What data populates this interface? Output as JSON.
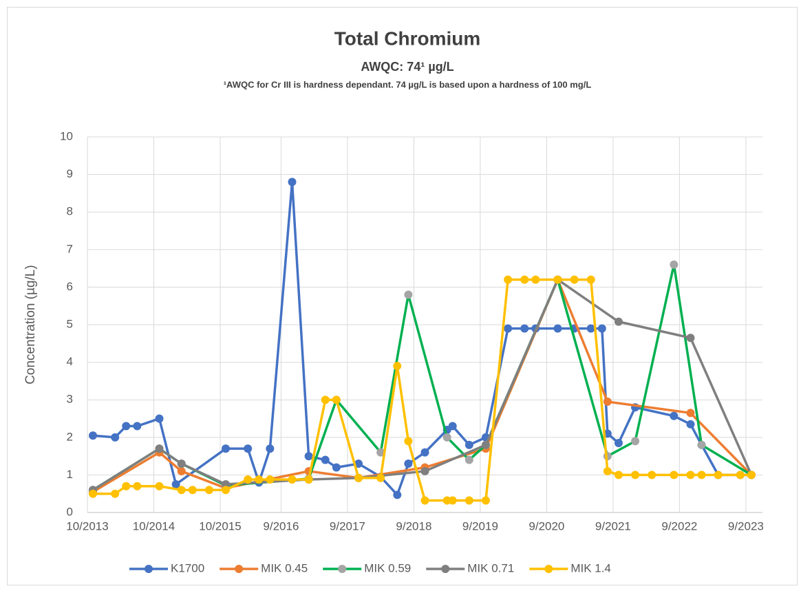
{
  "chart_data": {
    "type": "line",
    "title": "Total Chromium",
    "subtitle": "AWQC: 74¹ µg/L",
    "note": "¹AWQC for Cr III is hardness dependant. 74 µg/L is based upon a hardness of 100 mg/L",
    "y_label": "Concentration (µg/L)",
    "xlim": [
      "10/2013",
      "12/2023"
    ],
    "xticks": [
      "10/2013",
      "10/2014",
      "10/2015",
      "9/2016",
      "9/2017",
      "9/2018",
      "9/2019",
      "9/2020",
      "9/2021",
      "9/2022",
      "9/2023"
    ],
    "ylim": [
      0,
      10
    ],
    "yticks": [
      0,
      1,
      2,
      3,
      4,
      5,
      6,
      7,
      8,
      9,
      10
    ],
    "grid": true,
    "legend": "bottom",
    "series": [
      {
        "name": "K1700",
        "color": "#4472c4",
        "marker_color": "#4472c4",
        "x": [
          "11/2013",
          "3/2014",
          "5/2014",
          "7/2014",
          "11/2014",
          "2/2015",
          "11/2015",
          "3/2016",
          "5/2016",
          "7/2016",
          "11/2016",
          "2/2017",
          "5/2017",
          "7/2017",
          "11/2017",
          "3/2018",
          "6/2018",
          "8/2018",
          "11/2018",
          "3/2019",
          "4/2019",
          "7/2019",
          "10/2019",
          "2/2020",
          "5/2020",
          "7/2020",
          "11/2020",
          "2/2021",
          "5/2021",
          "7/2021",
          "8/2021",
          "10/2021",
          "1/2022",
          "8/2022",
          "11/2022",
          "1/2023",
          "4/2023",
          "8/2023",
          "10/2023"
        ],
        "values": [
          2.05,
          2.0,
          2.3,
          2.3,
          2.5,
          0.75,
          1.7,
          1.7,
          0.8,
          1.7,
          8.8,
          1.5,
          1.4,
          1.2,
          1.3,
          0.95,
          0.47,
          1.3,
          1.6,
          2.2,
          2.3,
          1.8,
          2.0,
          4.9,
          4.9,
          4.9,
          4.9,
          4.9,
          4.9,
          4.9,
          2.1,
          1.85,
          2.8,
          2.57,
          2.35,
          1.8,
          1.0,
          1.0,
          1.0
        ]
      },
      {
        "name": "MIK 0.45",
        "color": "#ed7d31",
        "marker_color": "#ed7d31",
        "x": [
          "11/2013",
          "11/2014",
          "3/2015",
          "11/2015",
          "2/2017",
          "11/2017",
          "11/2018",
          "10/2019",
          "11/2020",
          "8/2021",
          "11/2022",
          "10/2023"
        ],
        "values": [
          0.55,
          1.6,
          1.1,
          0.65,
          1.1,
          0.92,
          1.2,
          1.7,
          6.2,
          2.95,
          2.65,
          1.0
        ]
      },
      {
        "name": "MIK 0.59",
        "color": "#00b050",
        "marker_color": "#a5a5a5",
        "x": [
          "11/2013",
          "11/2014",
          "3/2015",
          "11/2015",
          "2/2017",
          "7/2017",
          "3/2018",
          "8/2018",
          "3/2019",
          "7/2019",
          "10/2019",
          "11/2020",
          "8/2021",
          "1/2022",
          "8/2022",
          "1/2023",
          "10/2023"
        ],
        "values": [
          0.6,
          1.7,
          1.3,
          0.72,
          0.9,
          3.0,
          1.6,
          5.8,
          2.0,
          1.4,
          1.8,
          6.2,
          1.5,
          1.9,
          6.6,
          1.8,
          1.0
        ]
      },
      {
        "name": "MIK 0.71",
        "color": "#7f7f7f",
        "marker_color": "#7f7f7f",
        "x": [
          "11/2013",
          "11/2014",
          "3/2015",
          "11/2015",
          "2/2017",
          "11/2017",
          "11/2018",
          "10/2019",
          "11/2020",
          "10/2021",
          "11/2022",
          "10/2023"
        ],
        "values": [
          0.6,
          1.7,
          1.3,
          0.75,
          0.88,
          0.92,
          1.1,
          1.8,
          6.2,
          5.08,
          4.65,
          1.0
        ]
      },
      {
        "name": "MIK 1.4",
        "color": "#ffc000",
        "marker_color": "#ffc000",
        "x": [
          "11/2013",
          "3/2014",
          "5/2014",
          "7/2014",
          "11/2014",
          "3/2015",
          "5/2015",
          "8/2015",
          "11/2015",
          "3/2016",
          "5/2016",
          "7/2016",
          "11/2016",
          "2/2017",
          "5/2017",
          "7/2017",
          "11/2017",
          "3/2018",
          "6/2018",
          "8/2018",
          "11/2018",
          "3/2019",
          "4/2019",
          "7/2019",
          "10/2019",
          "2/2020",
          "5/2020",
          "7/2020",
          "11/2020",
          "2/2021",
          "5/2021",
          "8/2021",
          "10/2021",
          "1/2022",
          "4/2022",
          "8/2022",
          "11/2022",
          "1/2023",
          "4/2023",
          "8/2023",
          "10/2023"
        ],
        "values": [
          0.5,
          0.5,
          0.7,
          0.7,
          0.7,
          0.6,
          0.6,
          0.6,
          0.6,
          0.88,
          0.88,
          0.88,
          0.88,
          0.88,
          3.0,
          3.0,
          0.92,
          0.92,
          3.9,
          1.9,
          0.32,
          0.32,
          0.32,
          0.32,
          0.32,
          6.2,
          6.2,
          6.2,
          6.2,
          6.2,
          6.2,
          1.1,
          1.0,
          1.0,
          1.0,
          1.0,
          1.0,
          1.0,
          1.0,
          1.0,
          1.0
        ]
      }
    ]
  }
}
